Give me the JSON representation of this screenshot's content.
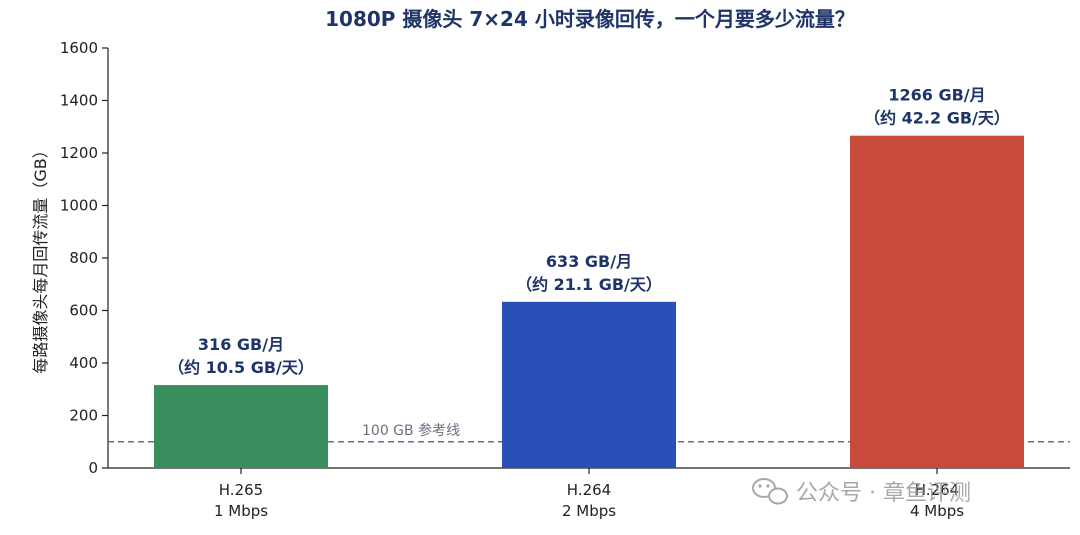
{
  "chart_data": {
    "type": "bar",
    "title": "1080P 摄像头 7×24 小时录像回传，一个月要多少流量？",
    "xlabel": "",
    "ylabel": "每路摄像头每月回传流量（GB）",
    "ylim": [
      0,
      1600
    ],
    "yticks": [
      0,
      200,
      400,
      600,
      800,
      1000,
      1200,
      1400,
      1600
    ],
    "categories": [
      {
        "line1": "H.265",
        "line2": "1 Mbps"
      },
      {
        "line1": "H.264",
        "line2": "2 Mbps"
      },
      {
        "line1": "H.264",
        "line2": "4 Mbps"
      }
    ],
    "values": [
      316,
      633,
      1266
    ],
    "bar_colors": [
      "#3a8f5e",
      "#2a4fb8",
      "#c84a3a"
    ],
    "data_labels": [
      {
        "line1": "316 GB/月",
        "line2": "（约 10.5 GB/天）"
      },
      {
        "line1": "633 GB/月",
        "line2": "（约 21.1 GB/天）"
      },
      {
        "line1": "1266 GB/月",
        "line2": "（约 42.2 GB/天）"
      }
    ],
    "reference_line": {
      "value": 100,
      "label": "100 GB 参考线",
      "color": "#6b7080"
    },
    "grid": false,
    "legend": "none"
  },
  "watermark": {
    "icon": "wechat-icon",
    "text": "公众号 · 章鱼评测"
  }
}
